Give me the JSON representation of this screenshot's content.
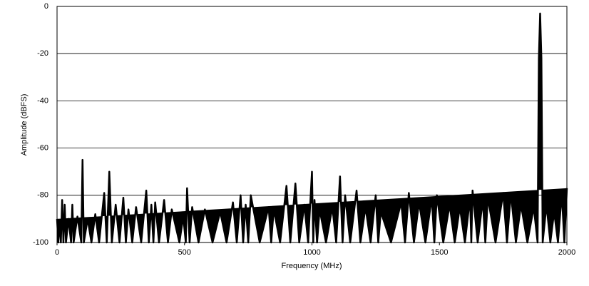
{
  "chart_data": {
    "type": "line",
    "x_label": "Frequency (MHz)",
    "y_label": "Amplitude (dBFS)",
    "xlim": [
      0,
      2000
    ],
    "xticks": [
      0,
      500,
      1000,
      1500,
      2000
    ],
    "ylim": [
      -100,
      0
    ],
    "yticks": [
      -100,
      -80,
      -60,
      -40,
      -20,
      0
    ],
    "grid": true,
    "x": [
      0,
      5,
      10,
      15,
      20,
      25,
      30,
      35,
      45,
      55,
      60,
      65,
      80,
      95,
      100,
      105,
      120,
      135,
      150,
      165,
      185,
      195,
      205,
      215,
      230,
      245,
      260,
      270,
      280,
      295,
      310,
      330,
      350,
      360,
      370,
      378,
      385,
      400,
      420,
      435,
      450,
      480,
      495,
      505,
      510,
      520,
      530,
      555,
      580,
      610,
      640,
      665,
      690,
      705,
      720,
      730,
      740,
      750,
      760,
      795,
      830,
      840,
      850,
      875,
      900,
      915,
      935,
      950,
      970,
      985,
      1000,
      1005,
      1010,
      1020,
      1030,
      1055,
      1080,
      1095,
      1110,
      1120,
      1130,
      1150,
      1175,
      1190,
      1210,
      1230,
      1250,
      1260,
      1270,
      1310,
      1350,
      1365,
      1380,
      1400,
      1420,
      1445,
      1470,
      1480,
      1490,
      1515,
      1540,
      1560,
      1580,
      1600,
      1620,
      1625,
      1630,
      1650,
      1670,
      1680,
      1690,
      1720,
      1750,
      1765,
      1780,
      1800,
      1820,
      1845,
      1870,
      1885,
      1890,
      1895,
      1900,
      1905,
      1920,
      1935,
      1950,
      1965,
      1980,
      1990,
      2000
    ],
    "series": [
      {
        "color": "#000000",
        "values": [
          -90,
          -100,
          -91,
          -100,
          -82,
          -100,
          -84,
          -100,
          -90,
          -100,
          -84,
          -100,
          -89,
          -100,
          -65,
          -100,
          -90,
          -100,
          -88,
          -100,
          -79,
          -100,
          -70,
          -100,
          -84,
          -100,
          -81,
          -100,
          -86,
          -100,
          -85,
          -100,
          -78,
          -100,
          -84,
          -100,
          -83,
          -100,
          -82,
          -100,
          -86,
          -100,
          -89,
          -100,
          -77,
          -100,
          -85,
          -100,
          -86,
          -100,
          -87,
          -100,
          -83,
          -100,
          -80,
          -100,
          -84,
          -100,
          -80,
          -100,
          -85,
          -100,
          -86,
          -100,
          -76,
          -100,
          -75,
          -100,
          -84,
          -100,
          -70,
          -100,
          -82,
          -100,
          -86,
          -100,
          -85,
          -100,
          -72,
          -100,
          -80,
          -100,
          -78,
          -100,
          -85,
          -100,
          -80,
          -100,
          -87,
          -100,
          -83,
          -100,
          -79,
          -100,
          -83,
          -100,
          -81,
          -100,
          -80,
          -100,
          -84,
          -100,
          -85,
          -100,
          -81,
          -100,
          -78,
          -100,
          -82,
          -100,
          -81,
          -100,
          -79,
          -100,
          -79,
          -100,
          -84,
          -100,
          -85,
          -100,
          -22,
          -3,
          -22,
          -100,
          -84,
          -100,
          -87,
          -100,
          -79,
          -100,
          -77
        ]
      }
    ]
  }
}
